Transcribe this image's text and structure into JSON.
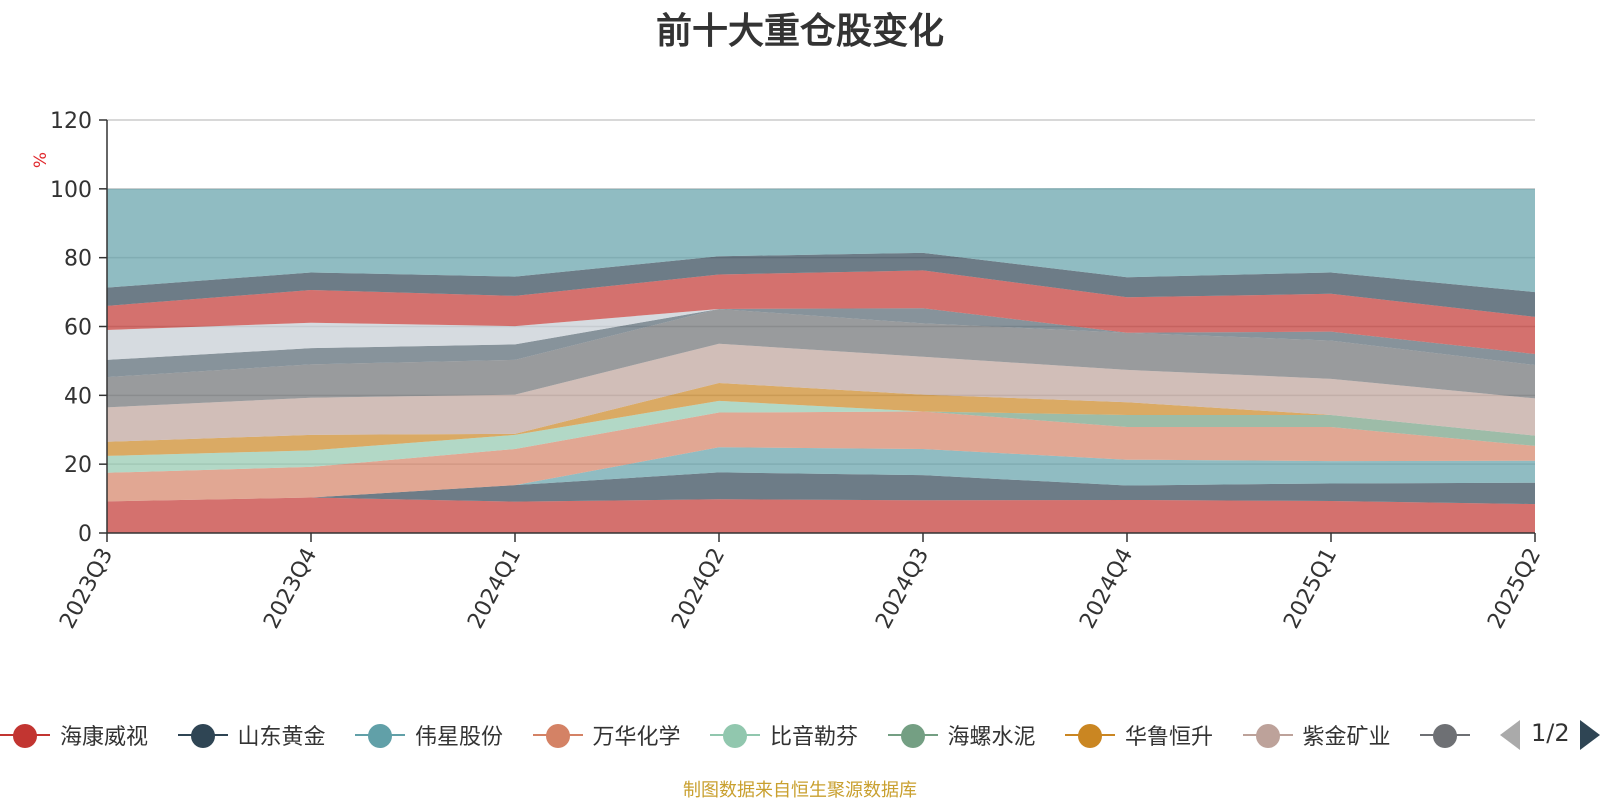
{
  "chart_data": {
    "type": "area",
    "stacked": true,
    "title": "前十大重仓股变化",
    "ylabel": "%",
    "xlabel": "",
    "categories": [
      "2023Q3",
      "2023Q4",
      "2024Q1",
      "2024Q2",
      "2024Q3",
      "2024Q4",
      "2025Q1",
      "2025Q2"
    ],
    "ylim": [
      0,
      120
    ],
    "yticks": [
      0,
      20,
      40,
      60,
      80,
      100,
      120
    ],
    "grid": true,
    "series": [
      {
        "name": "海康威视",
        "color": "#c23531",
        "values": [
          9.2,
          10.3,
          9.1,
          9.8,
          9.5,
          9.6,
          9.3,
          8.4
        ]
      },
      {
        "name": "山东黄金",
        "color": "#2f4554",
        "values": [
          0.0,
          0.0,
          4.8,
          7.8,
          7.3,
          4.2,
          5.1,
          6.2
        ]
      },
      {
        "name": "伟星股份",
        "color": "#61a0a8",
        "values": [
          0.0,
          0.0,
          0.0,
          7.3,
          7.6,
          7.5,
          6.5,
          6.4
        ]
      },
      {
        "name": "万华化学",
        "color": "#d48265",
        "values": [
          8.3,
          8.9,
          10.5,
          10.1,
          10.9,
          9.5,
          9.9,
          4.3
        ]
      },
      {
        "name": "比音勒芬",
        "color": "#91c7ae",
        "values": [
          4.9,
          4.8,
          4.1,
          3.4,
          0.0,
          0.0,
          0.0,
          0.0
        ]
      },
      {
        "name": "海螺水泥",
        "color": "#749f83",
        "values": [
          0.0,
          0.0,
          0.0,
          0.0,
          0.0,
          3.5,
          3.5,
          3.0
        ]
      },
      {
        "name": "华鲁恒升",
        "color": "#ca8622",
        "values": [
          4.1,
          4.5,
          0.3,
          5.2,
          4.9,
          3.7,
          0.0,
          0.0
        ]
      },
      {
        "name": "紫金矿业",
        "color": "#bda29a",
        "values": [
          10.0,
          10.8,
          11.4,
          11.4,
          11.0,
          9.4,
          10.5,
          10.8
        ]
      },
      {
        "name": "",
        "color": "#6e7074",
        "values": [
          8.8,
          9.7,
          10.1,
          10.1,
          9.7,
          10.8,
          11.1,
          9.7
        ]
      },
      {
        "name": "",
        "color": "#546570",
        "values": [
          5.0,
          4.7,
          4.5,
          0.0,
          4.4,
          0.0,
          2.6,
          3.2
        ]
      },
      {
        "name": "",
        "color": "#c4ccd3",
        "values": [
          8.7,
          7.4,
          5.3,
          0.0,
          0.0,
          0.0,
          0.0,
          0.0
        ]
      },
      {
        "name": "",
        "color": "#c23531",
        "values": [
          7.0,
          9.5,
          8.8,
          10.0,
          11.0,
          10.3,
          11.0,
          10.8
        ]
      },
      {
        "name": "",
        "color": "#2f4554",
        "values": [
          5.3,
          5.1,
          5.6,
          5.3,
          5.1,
          5.8,
          6.2,
          7.2
        ]
      },
      {
        "name": "",
        "color": "#61a0a8",
        "values": [
          28.7,
          24.3,
          25.5,
          19.6,
          18.7,
          25.9,
          24.3,
          30.0
        ]
      }
    ]
  },
  "legend": {
    "items": [
      {
        "label": "海康威视",
        "color": "#c23531"
      },
      {
        "label": "山东黄金",
        "color": "#2f4554"
      },
      {
        "label": "伟星股份",
        "color": "#61a0a8"
      },
      {
        "label": "万华化学",
        "color": "#d48265"
      },
      {
        "label": "比音勒芬",
        "color": "#91c7ae"
      },
      {
        "label": "海螺水泥",
        "color": "#749f83"
      },
      {
        "label": "华鲁恒升",
        "color": "#ca8622"
      },
      {
        "label": "紫金矿业",
        "color": "#bda29a"
      },
      {
        "label": "",
        "color": "#6e7074"
      }
    ],
    "page_text": "1/2"
  },
  "source_note": "制图数据来自恒生聚源数据库"
}
